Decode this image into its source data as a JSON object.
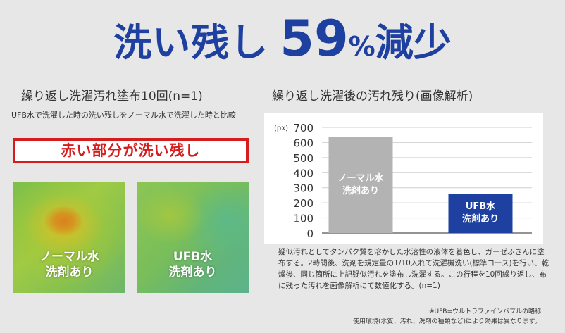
{
  "headline": {
    "part1": "洗い残し",
    "number": "59",
    "unit": "%",
    "part2": "減少"
  },
  "left": {
    "title": "繰り返し洗濯汚れ塗布10回(n=1)",
    "subtitle": "UFB水で洗濯した時の洗い残しをノーマル水で洗濯した時と比較",
    "callout": "赤い部分が洗い残し",
    "images": [
      {
        "caption_line1": "ノーマル水",
        "caption_line2": "洗剤あり"
      },
      {
        "caption_line1": "UFB水",
        "caption_line2": "洗剤あり"
      }
    ]
  },
  "right": {
    "title": "繰り返し洗濯後の汚れ残り(画像解析)"
  },
  "chart_data": {
    "type": "bar",
    "categories": [
      "ノーマル水\n洗剤あり",
      "UFB水\n洗剤あり"
    ],
    "values": [
      635,
      260
    ],
    "bar_colors": [
      "#b3b3b3",
      "#1e40a0"
    ],
    "unit_label": "(px)",
    "ylim": [
      0,
      700
    ],
    "yticks": [
      "0",
      "100",
      "200",
      "300",
      "400",
      "500",
      "600",
      "700"
    ],
    "grid": true,
    "bar_label_lines": [
      [
        "ノーマル水",
        "洗剤あり"
      ],
      [
        "UFB水",
        "洗剤あり"
      ]
    ]
  },
  "description": "疑似汚れとしてタンパク質を溶かした水溶性の液体を着色し、ガーゼふきんに塗布する。2時間後、洗剤を規定量の1/10入れて洗濯機洗い(標準コース)を行い、乾燥後、同じ箇所に上記疑似汚れを塗布し洗濯する。この行程を10回繰り返し、布に残った汚れを画像解析にて数値化する。(n=1)",
  "notes": {
    "line1": "※UFB=ウルトラファインバブルの略称",
    "line2": "使用環境(水質、汚れ、洗剤の種類など)により効果は異なります。"
  },
  "colors": {
    "brand_blue": "#1e40a0",
    "alert_red": "#d61c1c",
    "bar_gray": "#b3b3b3"
  }
}
